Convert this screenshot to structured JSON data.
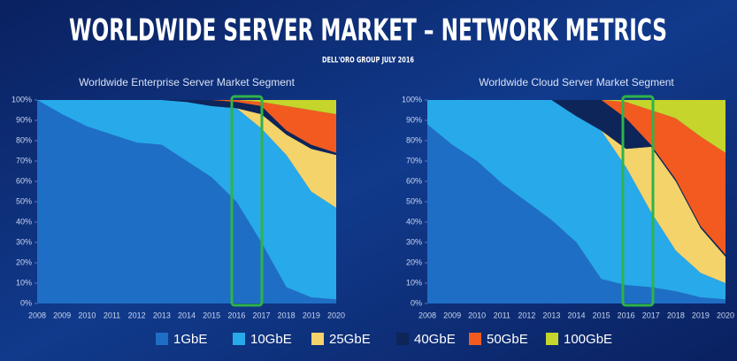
{
  "title": "WORLDWIDE SERVER MARKET – NETWORK METRICS",
  "subtitle": "DELL'ORO GROUP JULY 2016",
  "chart_data": [
    {
      "type": "stacked-area",
      "title": "Worldwide Enterprise Server Market Segment",
      "x": [
        2008,
        2009,
        2010,
        2011,
        2012,
        2013,
        2014,
        2015,
        2016,
        2017,
        2018,
        2019,
        2020
      ],
      "xlim": [
        2008,
        2020
      ],
      "ylim": [
        0,
        100
      ],
      "yticks": [
        {
          "value": 0,
          "label": "0%"
        },
        {
          "value": 10,
          "label": "10%"
        },
        {
          "value": 20,
          "label": "20%"
        },
        {
          "value": 30,
          "label": "30%"
        },
        {
          "value": 40,
          "label": "40%"
        },
        {
          "value": 50,
          "label": "50%"
        },
        {
          "value": 60,
          "label": "60%"
        },
        {
          "value": 70,
          "label": "70%"
        },
        {
          "value": 80,
          "label": "80%"
        },
        {
          "value": 90,
          "label": "90%"
        },
        {
          "value": 100,
          "label": "100%"
        }
      ],
      "series": [
        {
          "name": "1GbE",
          "color": "#1f6ec6",
          "values": [
            100,
            93,
            87,
            83,
            79,
            78,
            70,
            62,
            50,
            30,
            8,
            3,
            2
          ]
        },
        {
          "name": "10GbE",
          "color": "#28a9ea",
          "values": [
            0,
            7,
            13,
            17,
            21,
            22,
            29,
            35,
            46,
            56,
            65,
            52,
            45
          ]
        },
        {
          "name": "25GbE",
          "color": "#f4d36b",
          "values": [
            0,
            0,
            0,
            0,
            0,
            0,
            0,
            0,
            0,
            7,
            10,
            21,
            26
          ]
        },
        {
          "name": "40GbE",
          "color": "#0d2558",
          "values": [
            0,
            0,
            0,
            0,
            0,
            0,
            1,
            3,
            3,
            4,
            2,
            2,
            1
          ]
        },
        {
          "name": "50GbE",
          "color": "#f25a20",
          "values": [
            0,
            0,
            0,
            0,
            0,
            0,
            0,
            0,
            1,
            2,
            12,
            17,
            19
          ]
        },
        {
          "name": "100GbE",
          "color": "#c5d52b",
          "values": [
            0,
            0,
            0,
            0,
            0,
            0,
            0,
            0,
            0,
            1,
            3,
            5,
            7
          ]
        }
      ]
    },
    {
      "type": "stacked-area",
      "title": "Worldwide Cloud Server Market Segment",
      "x": [
        2008,
        2009,
        2010,
        2011,
        2012,
        2013,
        2014,
        2015,
        2016,
        2017,
        2018,
        2019,
        2020
      ],
      "xlim": [
        2008,
        2020
      ],
      "ylim": [
        0,
        100
      ],
      "yticks": [
        {
          "value": 0,
          "label": "0%"
        },
        {
          "value": 10,
          "label": "10%"
        },
        {
          "value": 20,
          "label": "20%"
        },
        {
          "value": 30,
          "label": "30%"
        },
        {
          "value": 40,
          "label": "40%"
        },
        {
          "value": 50,
          "label": "50%"
        },
        {
          "value": 60,
          "label": "60%"
        },
        {
          "value": 70,
          "label": "70%"
        },
        {
          "value": 80,
          "label": "80%"
        },
        {
          "value": 90,
          "label": "90%"
        },
        {
          "value": 100,
          "label": "100%"
        }
      ],
      "series": [
        {
          "name": "1GbE",
          "color": "#1f6ec6",
          "values": [
            88,
            78,
            70,
            59,
            50,
            41,
            30,
            12,
            9,
            8,
            6,
            3,
            2
          ]
        },
        {
          "name": "10GbE",
          "color": "#28a9ea",
          "values": [
            12,
            22,
            30,
            41,
            50,
            59,
            62,
            73,
            58,
            37,
            20,
            12,
            8
          ]
        },
        {
          "name": "25GbE",
          "color": "#f4d36b",
          "values": [
            0,
            0,
            0,
            0,
            0,
            0,
            0,
            0,
            9,
            32,
            34,
            22,
            13
          ]
        },
        {
          "name": "40GbE",
          "color": "#0d2558",
          "values": [
            0,
            0,
            0,
            0,
            0,
            0,
            8,
            15,
            15,
            1,
            1,
            1,
            1
          ]
        },
        {
          "name": "50GbE",
          "color": "#f25a20",
          "values": [
            0,
            0,
            0,
            0,
            0,
            0,
            0,
            0,
            8,
            17,
            30,
            44,
            50
          ]
        },
        {
          "name": "100GbE",
          "color": "#c5d52b",
          "values": [
            0,
            0,
            0,
            0,
            0,
            0,
            0,
            0,
            1,
            5,
            9,
            18,
            26
          ]
        }
      ]
    }
  ]
}
